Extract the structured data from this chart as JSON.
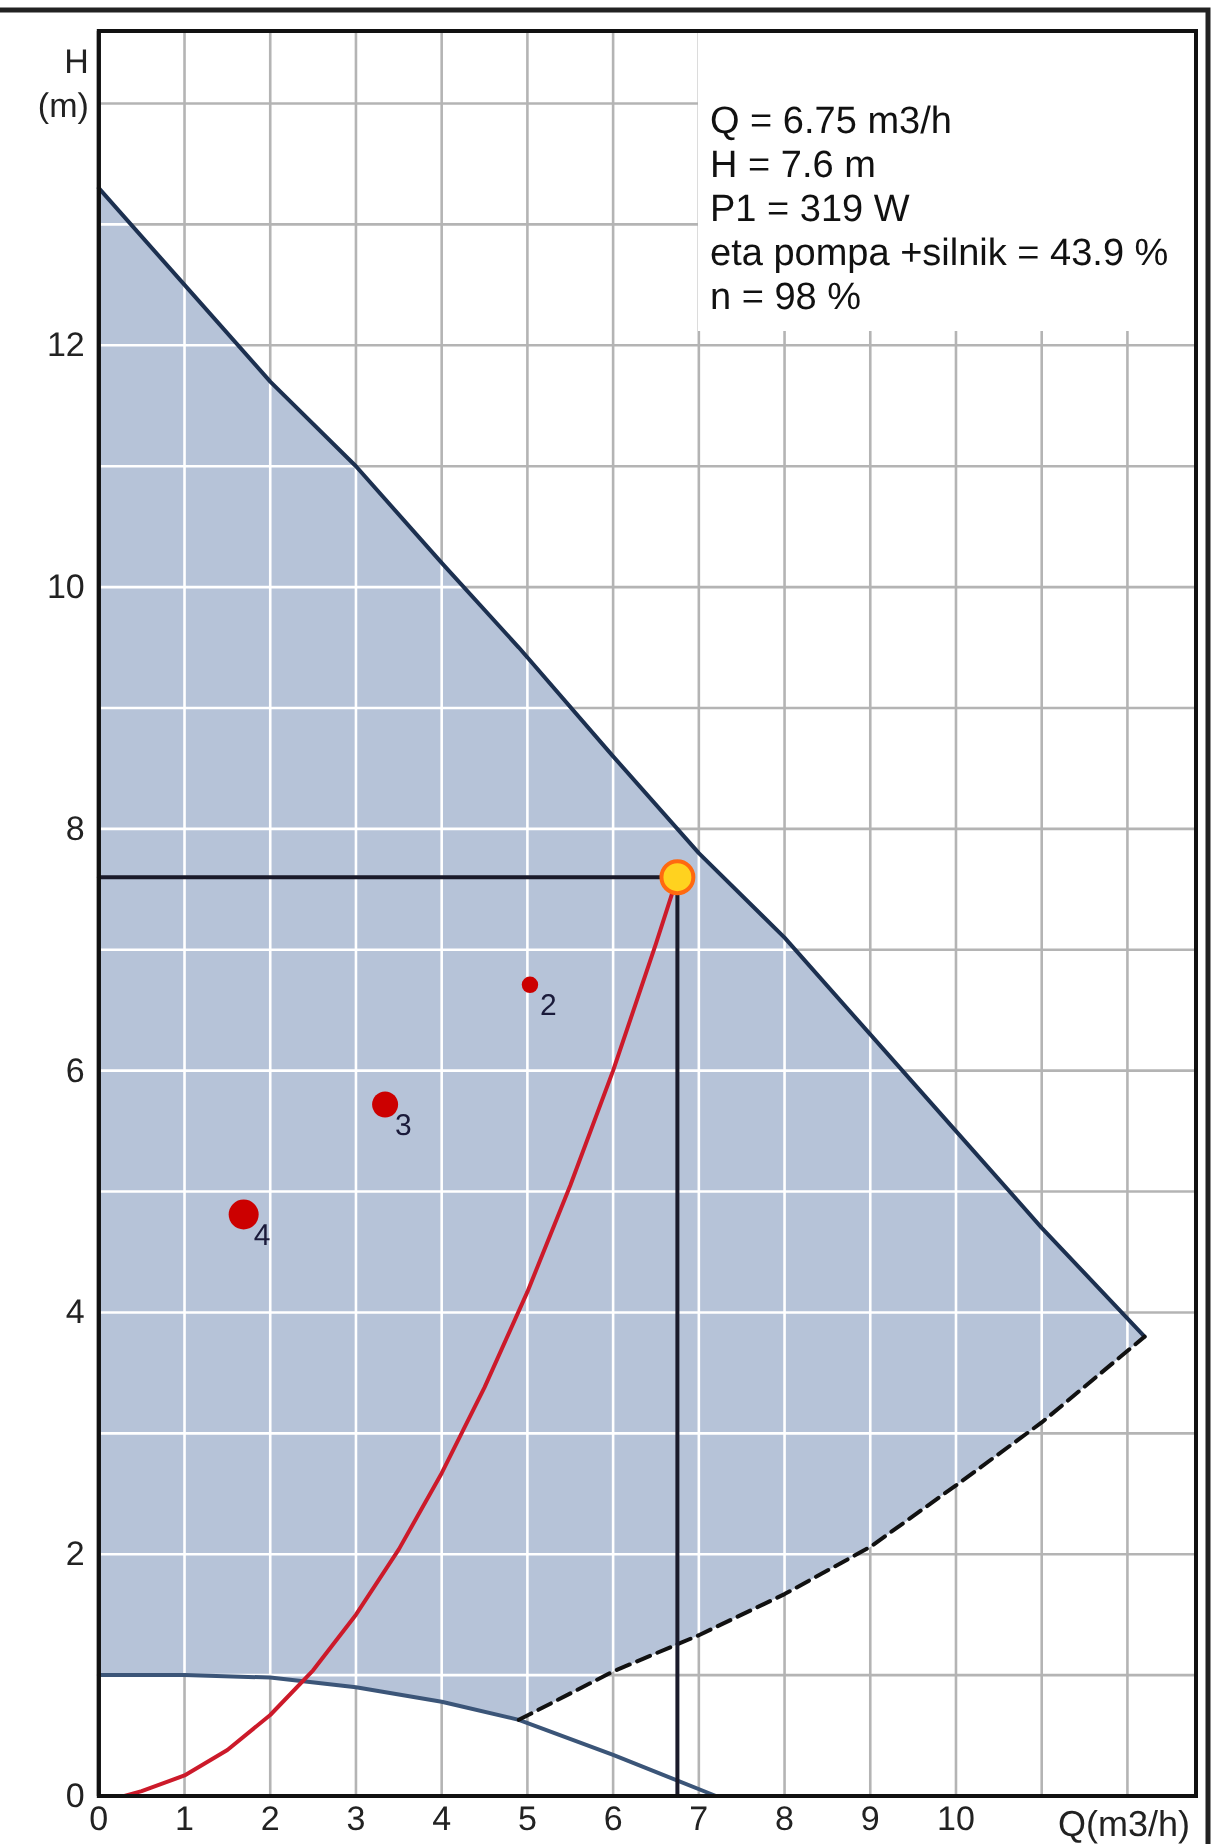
{
  "chart_data": {
    "type": "line",
    "xlabel": "Q(m3/h)",
    "ylabel": "H (m)",
    "xlim": [
      0,
      12.8
    ],
    "ylim": [
      0,
      14.6
    ],
    "xticks": [
      0,
      1,
      2,
      3,
      4,
      5,
      6,
      7,
      8,
      9,
      10,
      {
        "value": 11,
        "label": null
      },
      {
        "value": 12,
        "label": null
      }
    ],
    "yticks": [
      0,
      {
        "value": 1,
        "label": null
      },
      2,
      {
        "value": 3,
        "label": null
      },
      4,
      {
        "value": 5,
        "label": null
      },
      6,
      {
        "value": 7,
        "label": null
      },
      8,
      {
        "value": 9,
        "label": null
      },
      10,
      {
        "value": 11,
        "label": null
      },
      12,
      {
        "value": 13,
        "label": null
      },
      {
        "value": 14,
        "label": null
      }
    ],
    "grid": true,
    "series": [
      {
        "type": "line",
        "color": "#1c3050",
        "x": [
          0,
          1,
          2,
          3,
          4,
          4.9,
          6,
          7,
          8,
          9,
          10,
          11,
          12.2
        ],
        "values": [
          13.3,
          12.5,
          11.7,
          11.0,
          10.2,
          9.5,
          8.6,
          7.8,
          7.1,
          6.3,
          5.5,
          4.7,
          3.8
        ],
        "upper": [
          13.3,
          12.5,
          11.7,
          11.0,
          10.2,
          9.5,
          8.6,
          7.8,
          7.1,
          6.3,
          5.5,
          4.7,
          3.8
        ],
        "lower": [
          1.0,
          1.0,
          0.98,
          0.9,
          0.78,
          0.63,
          1.03,
          1.33,
          1.67,
          2.06,
          2.57,
          3.09,
          3.8
        ]
      },
      {
        "type": "line",
        "color": "#3b5578",
        "x": [
          0,
          1,
          2,
          3,
          4,
          4.9,
          6,
          7.2
        ],
        "values": [
          1.0,
          1.0,
          0.98,
          0.9,
          0.78,
          0.63,
          0.34,
          0
        ]
      },
      {
        "type": "line",
        "color": "#111111",
        "line_style": "dashed",
        "x": [
          4.9,
          6,
          7,
          8,
          9,
          10,
          11,
          12.2
        ],
        "values": [
          0.63,
          1.03,
          1.33,
          1.67,
          2.06,
          2.57,
          3.09,
          3.8
        ]
      },
      {
        "type": "line",
        "color": "#cc1a2a",
        "x": [
          0.3,
          0.5,
          1,
          1.5,
          2,
          2.5,
          3,
          3.5,
          4,
          4.5,
          5,
          5.5,
          6,
          6.5,
          6.75
        ],
        "values": [
          0,
          0.04,
          0.17,
          0.38,
          0.67,
          1.04,
          1.5,
          2.04,
          2.67,
          3.38,
          4.17,
          5.05,
          6.0,
          7.05,
          7.6
        ]
      },
      {
        "color": "#1a1a2a",
        "x": [
          0,
          6.75,
          6.75
        ],
        "values": [
          7.6,
          7.6,
          0
        ]
      },
      {
        "type": "bubble",
        "color": "#cc0000",
        "x": [
          1.69,
          3.34,
          5.03
        ],
        "values": [
          4.81,
          5.72,
          6.71
        ],
        "sizes": [
          1,
          0.75,
          0.3
        ]
      },
      {
        "type": "scatter",
        "color": "#ffd21f",
        "marker": "circle",
        "x": [
          6.75
        ],
        "values": [
          7.6
        ]
      }
    ],
    "annotations": [
      "Q = 6.75 m3/h",
      "H = 7.6 m",
      "P1 = 319 W",
      "eta pompa +silnik = 43.9 %",
      "n = 98 %",
      {
        "text": "4",
        "x": 1.69,
        "y": 4.81
      },
      {
        "text": "3",
        "x": 3.34,
        "y": 5.72
      },
      {
        "text": "2",
        "x": 5.03,
        "y": 6.71
      }
    ]
  }
}
